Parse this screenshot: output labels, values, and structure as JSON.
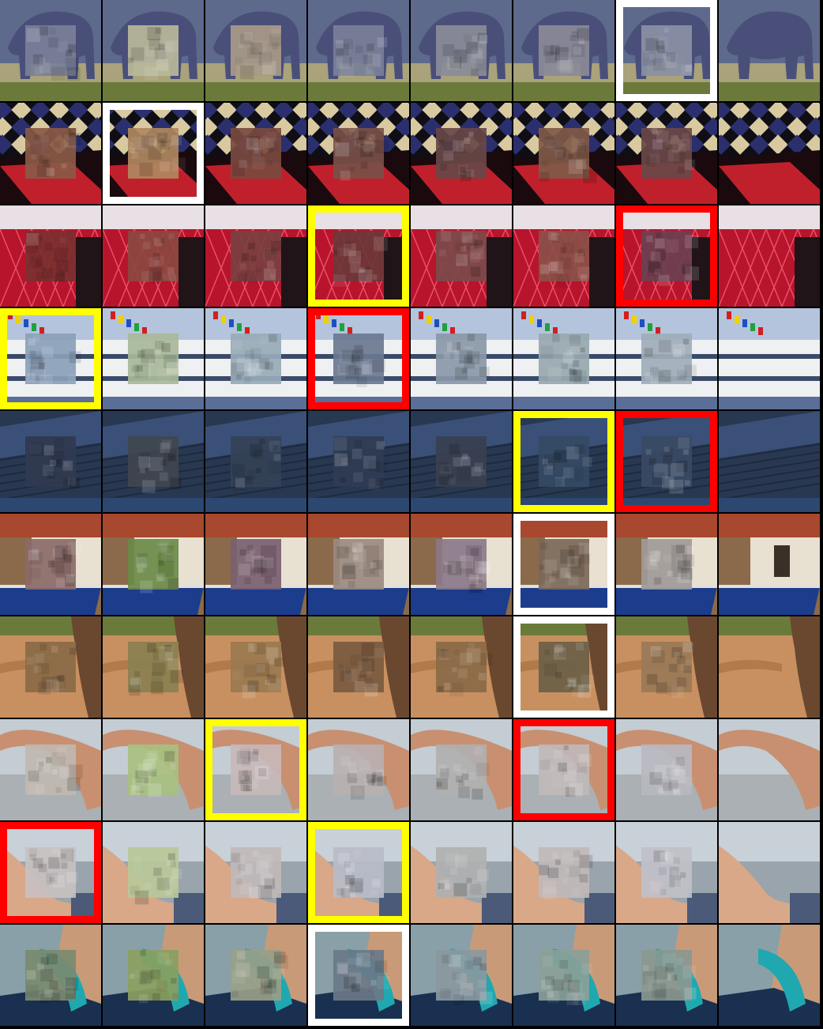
{
  "grid": {
    "rows": 10,
    "cols": 8,
    "highlight_colors": {
      "white": "#ffffff",
      "yellow": "#ffff00",
      "red": "#ff0000"
    },
    "row_scenes": [
      "elephant",
      "patterned-tiles-and-red-fabric",
      "red-quilted-fabric",
      "white-boat-with-flags",
      "blue-wooden-boat",
      "building-with-blue-boat",
      "elephant-leg-on-dirt",
      "arm-over-beach",
      "arm-over-water",
      "hands-holding-teal-fabric"
    ],
    "highlights": [
      {
        "row": 0,
        "col": 6,
        "color": "white"
      },
      {
        "row": 1,
        "col": 1,
        "color": "white"
      },
      {
        "row": 2,
        "col": 3,
        "color": "yellow"
      },
      {
        "row": 2,
        "col": 6,
        "color": "red"
      },
      {
        "row": 3,
        "col": 0,
        "color": "yellow"
      },
      {
        "row": 3,
        "col": 3,
        "color": "red"
      },
      {
        "row": 4,
        "col": 5,
        "color": "yellow"
      },
      {
        "row": 4,
        "col": 6,
        "color": "red"
      },
      {
        "row": 5,
        "col": 5,
        "color": "white"
      },
      {
        "row": 6,
        "col": 5,
        "color": "white"
      },
      {
        "row": 7,
        "col": 2,
        "color": "yellow"
      },
      {
        "row": 7,
        "col": 5,
        "color": "red"
      },
      {
        "row": 8,
        "col": 0,
        "color": "red"
      },
      {
        "row": 8,
        "col": 3,
        "color": "yellow"
      },
      {
        "row": 9,
        "col": 3,
        "color": "white"
      }
    ]
  }
}
